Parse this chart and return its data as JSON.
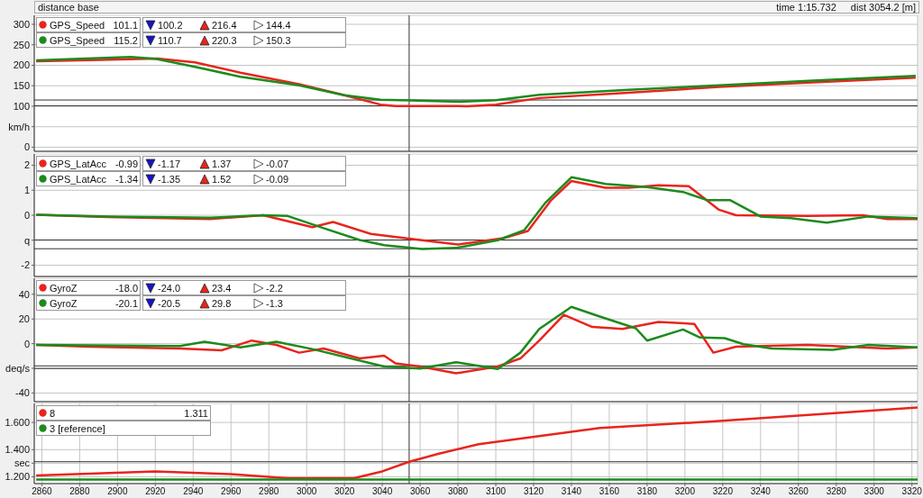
{
  "chart_data": [
    {
      "type": "line",
      "title": "distance base",
      "legend": "top left",
      "grid": true,
      "tick_labels": "y",
      "xlim": [
        2856,
        3323
      ],
      "xticks": [
        2860,
        2880,
        2900,
        2920,
        2940,
        2960,
        2980,
        3000,
        3020,
        3040,
        3060,
        3080,
        3100,
        3120,
        3140,
        3160,
        3180,
        3200,
        3220,
        3240,
        3260,
        3280,
        3300,
        3320
      ],
      "ylim": [
        -10,
        322
      ],
      "yticks": [
        0,
        {
          "value": 50,
          "label": "km/h"
        },
        100,
        150,
        200,
        250,
        300
      ],
      "series": [
        {
          "name": "GPS_Speed",
          "color": "#e8251d",
          "x": [
            2857,
            2880,
            2901,
            2921,
            2941,
            2965,
            2996,
            3020,
            3039,
            3047,
            3060,
            3085,
            3100,
            3123,
            3170,
            3218,
            3270,
            3322
          ],
          "values": [
            210,
            212,
            214,
            216.4,
            207,
            182,
            154,
            127,
            104,
            100.5,
            100.5,
            100.2,
            104,
            120,
            133,
            147,
            159,
            170
          ]
        },
        {
          "name": "GPS_Speed",
          "color": "#1d8a1d",
          "x": [
            2857,
            2880,
            2907,
            2920,
            2941,
            2965,
            2996,
            3020,
            3039,
            3055,
            3081,
            3100,
            3123,
            3170,
            3218,
            3270,
            3322
          ],
          "values": [
            212,
            216,
            220.3,
            216,
            196,
            172,
            151,
            127,
            116,
            114,
            110.7,
            115,
            128,
            140,
            151,
            163,
            174
          ]
        }
      ],
      "ref_lines": [
        {
          "axis": "x",
          "value": 3054.2
        },
        {
          "axis": "y",
          "value": 101.1
        },
        {
          "axis": "y",
          "value": 115.2
        }
      ],
      "annotations": [
        "101.1",
        "100.2",
        "216.4",
        "144.4",
        "115.2",
        "110.7",
        "220.3",
        "150.3",
        "time 1:15.732",
        "dist 3054.2 [m]"
      ]
    },
    {
      "type": "line",
      "legend": "top left",
      "grid": true,
      "tick_labels": "y",
      "xlim": [
        2856,
        3323
      ],
      "xticks": [
        2860,
        2880,
        2900,
        2920,
        2940,
        2960,
        2980,
        3000,
        3020,
        3040,
        3060,
        3080,
        3100,
        3120,
        3140,
        3160,
        3180,
        3200,
        3220,
        3240,
        3260,
        3280,
        3300,
        3320
      ],
      "ylim": [
        -2.45,
        2.45
      ],
      "yticks": [
        -2,
        {
          "value": -1,
          "label": "q"
        },
        0,
        1,
        2
      ],
      "series": [
        {
          "name": "GPS_LatAcc",
          "color": "#e8251d",
          "x": [
            2857,
            2895,
            2949,
            2977,
            3003,
            3014,
            3034,
            3060,
            3080,
            3104,
            3117,
            3129,
            3140,
            3158,
            3170,
            3186,
            3202,
            3218,
            3227,
            3265,
            3294,
            3307,
            3323
          ],
          "values": [
            0.02,
            -0.07,
            -0.15,
            0.0,
            -0.48,
            -0.27,
            -0.75,
            -0.99,
            -1.17,
            -0.92,
            -0.63,
            0.58,
            1.37,
            1.1,
            1.1,
            1.2,
            1.16,
            0.22,
            0.0,
            -0.03,
            0.0,
            -0.15,
            -0.15
          ]
        },
        {
          "name": "GPS_LatAcc",
          "color": "#1d8a1d",
          "x": [
            2857,
            2895,
            2949,
            2977,
            2990,
            3009,
            3028,
            3041,
            3061,
            3079,
            3101,
            3115,
            3126,
            3140,
            3158,
            3180,
            3199,
            3212,
            3224,
            3240,
            3256,
            3275,
            3297,
            3323
          ],
          "values": [
            0.02,
            -0.05,
            -0.1,
            0.0,
            -0.03,
            -0.52,
            -0.99,
            -1.2,
            -1.35,
            -1.31,
            -1.0,
            -0.6,
            0.48,
            1.52,
            1.25,
            1.13,
            0.93,
            0.6,
            0.6,
            -0.05,
            -0.12,
            -0.3,
            -0.05,
            -0.12
          ]
        }
      ],
      "ref_lines": [
        {
          "axis": "x",
          "value": 3054.2
        },
        {
          "axis": "y",
          "value": -0.99
        },
        {
          "axis": "y",
          "value": -1.34
        }
      ],
      "annotations": [
        "-0.99",
        "-1.17",
        "1.37",
        "-0.07",
        "-1.34",
        "-1.35",
        "1.52",
        "-0.09"
      ]
    },
    {
      "type": "line",
      "legend": "top left",
      "grid": true,
      "tick_labels": "y",
      "xlim": [
        2856,
        3323
      ],
      "xticks": [
        2860,
        2880,
        2900,
        2920,
        2940,
        2960,
        2980,
        3000,
        3020,
        3040,
        3060,
        3080,
        3100,
        3120,
        3140,
        3160,
        3180,
        3200,
        3220,
        3240,
        3260,
        3280,
        3300,
        3320
      ],
      "ylim": [
        -47,
        53
      ],
      "yticks": [
        -40,
        {
          "value": -20,
          "label": "deq/s"
        },
        0,
        20,
        40
      ],
      "series": [
        {
          "name": "GyroZ",
          "color": "#e8251d",
          "x": [
            2857,
            2885,
            2933,
            2955,
            2971,
            2984,
            2996,
            3009,
            3028,
            3041,
            3047,
            3060,
            3079,
            3101,
            3113,
            3123,
            3132,
            3136,
            3151,
            3167,
            3186,
            3205,
            3215,
            3227,
            3265,
            3307,
            3323
          ],
          "values": [
            -1,
            -2.4,
            -3.9,
            -5.4,
            2.5,
            -1,
            -7.3,
            -3.9,
            -12,
            -9.8,
            -16,
            -18.5,
            -24,
            -18.5,
            -12,
            2.5,
            17,
            23.4,
            13.5,
            12,
            17.6,
            16,
            -7.3,
            -2.5,
            -1,
            -4,
            -3
          ]
        },
        {
          "name": "GyroZ",
          "color": "#1d8a1d",
          "x": [
            2857,
            2933,
            2946,
            2965,
            2984,
            3003,
            3041,
            3060,
            3079,
            3101,
            3113,
            3123,
            3140,
            3155,
            3174,
            3180,
            3199,
            3208,
            3221,
            3231,
            3246,
            3278,
            3297,
            3323
          ],
          "values": [
            -1,
            -2,
            1.6,
            -3,
            1.5,
            -4.4,
            -18.5,
            -20.1,
            -15,
            -20.5,
            -7.3,
            12,
            29.8,
            22,
            12.5,
            2.5,
            11.5,
            5,
            4.5,
            -0.5,
            -4,
            -5,
            -1,
            -3
          ]
        }
      ],
      "ref_lines": [
        {
          "axis": "x",
          "value": 3054.2
        },
        {
          "axis": "y",
          "value": -18.0
        },
        {
          "axis": "y",
          "value": -20.1
        }
      ],
      "annotations": [
        "-18.0",
        "-24.0",
        "23.4",
        "-2.2",
        "-20.1",
        "-20.5",
        "29.8",
        "-1.3"
      ]
    },
    {
      "type": "line",
      "legend": "top left",
      "grid": true,
      "xlim": [
        2856,
        3323
      ],
      "xticks": [
        2860,
        2880,
        2900,
        2920,
        2940,
        2960,
        2980,
        3000,
        3020,
        3040,
        3060,
        3080,
        3100,
        3120,
        3140,
        3160,
        3180,
        3200,
        3220,
        3240,
        3260,
        3280,
        3300,
        3320
      ],
      "ylim": [
        1.15,
        1.74
      ],
      "yticks": [
        {
          "value": 1.2,
          "label": "1.200"
        },
        {
          "value": 1.3,
          "label": "sec"
        },
        {
          "value": 1.4,
          "label": "1.400"
        },
        {
          "value": 1.6,
          "label": "1.600"
        }
      ],
      "series": [
        {
          "name": "8",
          "color": "#e8251d",
          "x": [
            2857,
            2920,
            2960,
            2990,
            3025,
            3040,
            3054.2,
            3070,
            3091,
            3123,
            3155,
            3218,
            3281,
            3323
          ],
          "values": [
            1.21,
            1.24,
            1.22,
            1.19,
            1.19,
            1.24,
            1.311,
            1.37,
            1.44,
            1.5,
            1.56,
            1.61,
            1.67,
            1.71
          ]
        },
        {
          "name": "3 [reference]",
          "color": "#1d8a1d",
          "x": [
            2857,
            3323
          ],
          "values": [
            1.18,
            1.18
          ]
        }
      ],
      "ref_lines": [
        {
          "axis": "x",
          "value": 3054.2
        },
        {
          "axis": "y",
          "value": 1.311
        }
      ],
      "annotations": [
        "1.311"
      ]
    }
  ]
}
